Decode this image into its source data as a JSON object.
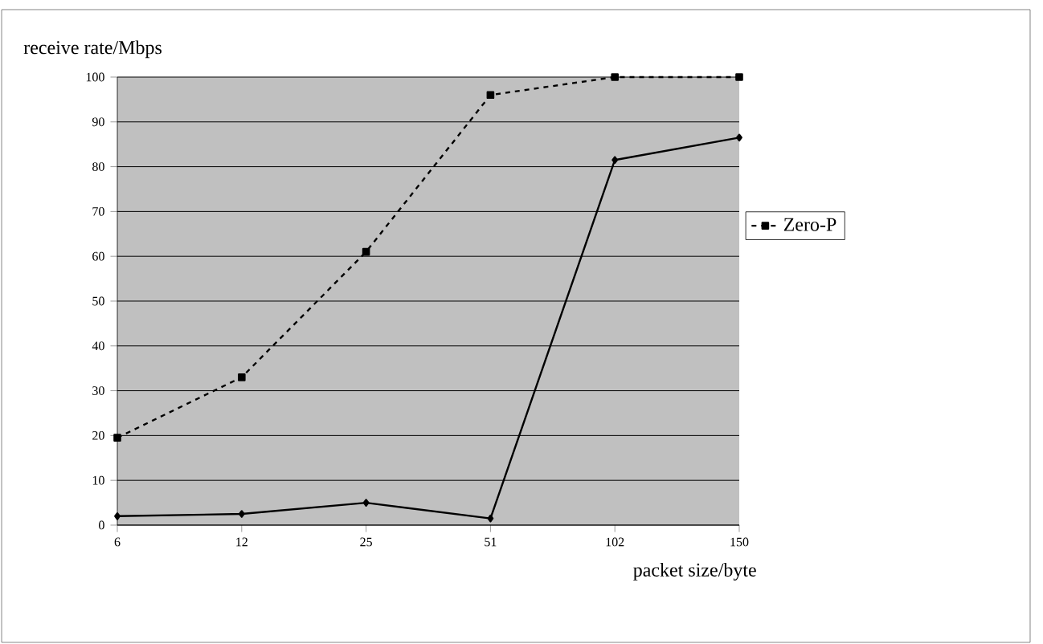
{
  "chart_data": {
    "type": "line",
    "ylabel": "receive rate/Mbps",
    "xlabel": "packet size/byte",
    "categories": [
      "6",
      "12",
      "25",
      "51",
      "102",
      "150"
    ],
    "series": [
      {
        "color": "#000000",
        "marker": "diamond",
        "line_style": "solid",
        "values": [
          2,
          2.5,
          5,
          1.5,
          81.5,
          86.5
        ]
      },
      {
        "name": "Zero-P",
        "color": "#000000",
        "marker": "square",
        "line_style": "dashed",
        "values": [
          19.5,
          33,
          61,
          96,
          100,
          100
        ]
      }
    ],
    "ylim": [
      0,
      100
    ],
    "yticks": [
      0,
      10,
      20,
      30,
      40,
      50,
      60,
      70,
      80,
      90,
      100
    ],
    "grid": "y",
    "legend": "right"
  }
}
